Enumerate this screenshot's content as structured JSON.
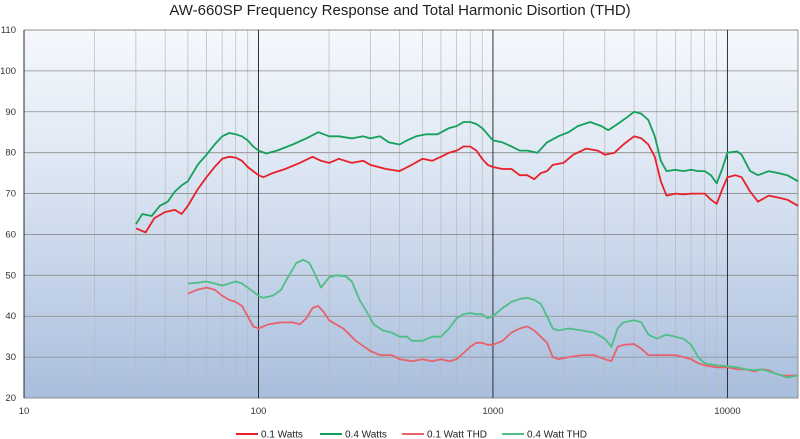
{
  "chart_data": {
    "type": "line",
    "title": "AW-660SP Frequency Response and Total Harmonic Disortion (THD)",
    "xlabel": "",
    "ylabel": "",
    "xscale": "log",
    "xlim": [
      10,
      20000
    ],
    "ylim": [
      20,
      110
    ],
    "x_ticks": [
      10,
      100,
      1000,
      10000
    ],
    "x_tick_labels": [
      "10",
      "100",
      "1000",
      "10000"
    ],
    "y_ticks": [
      20,
      30,
      40,
      50,
      60,
      70,
      80,
      90,
      100,
      110
    ],
    "y_tick_labels": [
      "20",
      "30",
      "40",
      "50",
      "60",
      "70",
      "80",
      "90",
      "100",
      "110"
    ],
    "grid": true,
    "legend_position": "bottom",
    "series": [
      {
        "name": "0.1 Watts",
        "color": "#e8202a",
        "points": [
          [
            30,
            61.5
          ],
          [
            33,
            60.5
          ],
          [
            36,
            64
          ],
          [
            40,
            65.5
          ],
          [
            44,
            66
          ],
          [
            47,
            65
          ],
          [
            50,
            67
          ],
          [
            55,
            71
          ],
          [
            60,
            74
          ],
          [
            65,
            76.5
          ],
          [
            70,
            78.5
          ],
          [
            75,
            79
          ],
          [
            80,
            78.8
          ],
          [
            85,
            78
          ],
          [
            90,
            76.5
          ],
          [
            95,
            75.5
          ],
          [
            100,
            74.5
          ],
          [
            105,
            74
          ],
          [
            115,
            75
          ],
          [
            130,
            76
          ],
          [
            150,
            77.5
          ],
          [
            170,
            79
          ],
          [
            185,
            78
          ],
          [
            200,
            77.5
          ],
          [
            220,
            78.5
          ],
          [
            250,
            77.5
          ],
          [
            280,
            78
          ],
          [
            300,
            77
          ],
          [
            350,
            76
          ],
          [
            400,
            75.5
          ],
          [
            450,
            77
          ],
          [
            500,
            78.5
          ],
          [
            550,
            78
          ],
          [
            600,
            79
          ],
          [
            650,
            80
          ],
          [
            700,
            80.5
          ],
          [
            750,
            81.5
          ],
          [
            800,
            81.5
          ],
          [
            850,
            80.5
          ],
          [
            900,
            78.5
          ],
          [
            950,
            77
          ],
          [
            1000,
            76.5
          ],
          [
            1100,
            76
          ],
          [
            1200,
            76
          ],
          [
            1300,
            74.5
          ],
          [
            1400,
            74.5
          ],
          [
            1500,
            73.5
          ],
          [
            1600,
            75
          ],
          [
            1700,
            75.5
          ],
          [
            1800,
            77
          ],
          [
            2000,
            77.5
          ],
          [
            2200,
            79.5
          ],
          [
            2500,
            81
          ],
          [
            2800,
            80.5
          ],
          [
            3000,
            79.5
          ],
          [
            3300,
            80
          ],
          [
            3600,
            82
          ],
          [
            4000,
            84
          ],
          [
            4300,
            83.5
          ],
          [
            4600,
            82
          ],
          [
            4900,
            79
          ],
          [
            5200,
            73
          ],
          [
            5500,
            69.5
          ],
          [
            6000,
            70
          ],
          [
            6500,
            69.8
          ],
          [
            7000,
            70
          ],
          [
            7500,
            70
          ],
          [
            8000,
            70
          ],
          [
            8500,
            68.5
          ],
          [
            9000,
            67.5
          ],
          [
            9500,
            71
          ],
          [
            10000,
            74
          ],
          [
            10800,
            74.5
          ],
          [
            11500,
            74
          ],
          [
            12500,
            70.5
          ],
          [
            13500,
            68
          ],
          [
            15000,
            69.5
          ],
          [
            16500,
            69
          ],
          [
            18000,
            68.5
          ],
          [
            20000,
            67
          ]
        ]
      },
      {
        "name": "0.4 Watts",
        "color": "#15a05a",
        "points": [
          [
            30,
            62.5
          ],
          [
            32,
            65
          ],
          [
            35,
            64.5
          ],
          [
            38,
            67
          ],
          [
            41,
            68
          ],
          [
            44,
            70.5
          ],
          [
            47,
            72
          ],
          [
            50,
            73
          ],
          [
            55,
            77
          ],
          [
            60,
            79.5
          ],
          [
            65,
            82
          ],
          [
            70,
            84
          ],
          [
            75,
            84.8
          ],
          [
            80,
            84.5
          ],
          [
            85,
            84
          ],
          [
            90,
            83
          ],
          [
            95,
            81.5
          ],
          [
            100,
            80.5
          ],
          [
            108,
            79.8
          ],
          [
            120,
            80.5
          ],
          [
            140,
            82
          ],
          [
            160,
            83.5
          ],
          [
            180,
            85
          ],
          [
            200,
            84
          ],
          [
            220,
            84
          ],
          [
            250,
            83.5
          ],
          [
            280,
            84
          ],
          [
            300,
            83.5
          ],
          [
            330,
            84
          ],
          [
            360,
            82.5
          ],
          [
            400,
            82
          ],
          [
            430,
            83
          ],
          [
            470,
            84
          ],
          [
            520,
            84.5
          ],
          [
            580,
            84.5
          ],
          [
            650,
            86
          ],
          [
            700,
            86.5
          ],
          [
            750,
            87.5
          ],
          [
            800,
            87.5
          ],
          [
            850,
            87
          ],
          [
            900,
            86
          ],
          [
            950,
            84.5
          ],
          [
            1000,
            83
          ],
          [
            1100,
            82.5
          ],
          [
            1200,
            81.5
          ],
          [
            1300,
            80.5
          ],
          [
            1400,
            80.5
          ],
          [
            1550,
            80
          ],
          [
            1700,
            82.5
          ],
          [
            1900,
            84
          ],
          [
            2100,
            85
          ],
          [
            2300,
            86.5
          ],
          [
            2600,
            87.5
          ],
          [
            2900,
            86.5
          ],
          [
            3100,
            85.5
          ],
          [
            3400,
            87
          ],
          [
            3700,
            88.5
          ],
          [
            4000,
            90
          ],
          [
            4300,
            89.5
          ],
          [
            4600,
            88
          ],
          [
            4900,
            84
          ],
          [
            5200,
            78
          ],
          [
            5500,
            75.5
          ],
          [
            6000,
            75.8
          ],
          [
            6500,
            75.5
          ],
          [
            7000,
            75.8
          ],
          [
            7500,
            75.5
          ],
          [
            8000,
            75.5
          ],
          [
            8500,
            74.5
          ],
          [
            9000,
            72.5
          ],
          [
            9500,
            76
          ],
          [
            10000,
            80
          ],
          [
            11000,
            80.3
          ],
          [
            11500,
            79.5
          ],
          [
            12500,
            75.5
          ],
          [
            13500,
            74.5
          ],
          [
            15000,
            75.5
          ],
          [
            16500,
            75
          ],
          [
            18000,
            74.5
          ],
          [
            20000,
            73
          ]
        ]
      },
      {
        "name": "0.1 Watt THD",
        "color": "#e8626e",
        "points": [
          [
            50,
            45.5
          ],
          [
            55,
            46.5
          ],
          [
            60,
            47
          ],
          [
            65,
            46.5
          ],
          [
            70,
            45
          ],
          [
            75,
            44
          ],
          [
            80,
            43.5
          ],
          [
            85,
            42.5
          ],
          [
            90,
            40
          ],
          [
            95,
            37.5
          ],
          [
            100,
            37
          ],
          [
            110,
            38
          ],
          [
            125,
            38.5
          ],
          [
            140,
            38.5
          ],
          [
            150,
            38
          ],
          [
            160,
            39.5
          ],
          [
            170,
            42
          ],
          [
            180,
            42.5
          ],
          [
            190,
            41
          ],
          [
            200,
            39
          ],
          [
            230,
            37
          ],
          [
            260,
            34
          ],
          [
            300,
            31.5
          ],
          [
            330,
            30.5
          ],
          [
            370,
            30.5
          ],
          [
            400,
            29.5
          ],
          [
            450,
            29
          ],
          [
            500,
            29.5
          ],
          [
            550,
            29
          ],
          [
            600,
            29.5
          ],
          [
            650,
            29
          ],
          [
            700,
            29.5
          ],
          [
            750,
            31
          ],
          [
            800,
            32.5
          ],
          [
            850,
            33.5
          ],
          [
            900,
            33.5
          ],
          [
            950,
            33
          ],
          [
            1000,
            33
          ],
          [
            1100,
            34
          ],
          [
            1200,
            36
          ],
          [
            1300,
            37
          ],
          [
            1400,
            37.5
          ],
          [
            1500,
            36.5
          ],
          [
            1600,
            35
          ],
          [
            1700,
            33.5
          ],
          [
            1800,
            30
          ],
          [
            1900,
            29.5
          ],
          [
            2100,
            30
          ],
          [
            2400,
            30.5
          ],
          [
            2700,
            30.5
          ],
          [
            3000,
            29.5
          ],
          [
            3200,
            29
          ],
          [
            3400,
            32.5
          ],
          [
            3600,
            33
          ],
          [
            4000,
            33.2
          ],
          [
            4300,
            32
          ],
          [
            4600,
            30.5
          ],
          [
            5000,
            30.5
          ],
          [
            5500,
            30.5
          ],
          [
            6000,
            30.5
          ],
          [
            6500,
            30
          ],
          [
            7000,
            29.5
          ],
          [
            7500,
            28.5
          ],
          [
            8000,
            28
          ],
          [
            9000,
            27.5
          ],
          [
            10000,
            27.5
          ],
          [
            11000,
            27
          ],
          [
            12000,
            27
          ],
          [
            13000,
            26.5
          ],
          [
            14000,
            27
          ],
          [
            15000,
            26.8
          ],
          [
            16000,
            26
          ],
          [
            17000,
            25.5
          ],
          [
            18000,
            25.5
          ],
          [
            20000,
            25.5
          ]
        ]
      },
      {
        "name": "0.4 Watt THD",
        "color": "#4fbf86",
        "points": [
          [
            50,
            48
          ],
          [
            55,
            48.2
          ],
          [
            60,
            48.5
          ],
          [
            65,
            48
          ],
          [
            70,
            47.5
          ],
          [
            75,
            48
          ],
          [
            80,
            48.5
          ],
          [
            85,
            48
          ],
          [
            90,
            47
          ],
          [
            95,
            46
          ],
          [
            100,
            45
          ],
          [
            105,
            44.5
          ],
          [
            115,
            45
          ],
          [
            125,
            46.5
          ],
          [
            135,
            50
          ],
          [
            145,
            53
          ],
          [
            155,
            53.8
          ],
          [
            165,
            53
          ],
          [
            175,
            50
          ],
          [
            185,
            47
          ],
          [
            200,
            49.5
          ],
          [
            215,
            50
          ],
          [
            235,
            49.8
          ],
          [
            250,
            48.5
          ],
          [
            270,
            44
          ],
          [
            290,
            41
          ],
          [
            310,
            38
          ],
          [
            340,
            36.5
          ],
          [
            370,
            36
          ],
          [
            400,
            35
          ],
          [
            430,
            35
          ],
          [
            450,
            34
          ],
          [
            500,
            34
          ],
          [
            550,
            35
          ],
          [
            600,
            35
          ],
          [
            650,
            37
          ],
          [
            700,
            39.5
          ],
          [
            750,
            40.5
          ],
          [
            800,
            40.8
          ],
          [
            850,
            40.5
          ],
          [
            900,
            40.5
          ],
          [
            950,
            39.5
          ],
          [
            1000,
            40
          ],
          [
            1100,
            42
          ],
          [
            1200,
            43.5
          ],
          [
            1300,
            44.2
          ],
          [
            1400,
            44.5
          ],
          [
            1500,
            44
          ],
          [
            1600,
            43
          ],
          [
            1700,
            40
          ],
          [
            1800,
            37
          ],
          [
            1900,
            36.5
          ],
          [
            2100,
            37
          ],
          [
            2400,
            36.5
          ],
          [
            2700,
            36
          ],
          [
            3000,
            34.5
          ],
          [
            3200,
            32.5
          ],
          [
            3400,
            37
          ],
          [
            3600,
            38.5
          ],
          [
            4000,
            39
          ],
          [
            4300,
            38.5
          ],
          [
            4600,
            35.5
          ],
          [
            5000,
            34.5
          ],
          [
            5500,
            35.5
          ],
          [
            6000,
            35
          ],
          [
            6500,
            34.5
          ],
          [
            7000,
            33
          ],
          [
            7500,
            30
          ],
          [
            8000,
            28.5
          ],
          [
            9000,
            28
          ],
          [
            10000,
            27.8
          ],
          [
            11000,
            27.5
          ],
          [
            12000,
            27
          ],
          [
            13000,
            26.8
          ],
          [
            14000,
            27
          ],
          [
            15000,
            26.5
          ],
          [
            16000,
            26
          ],
          [
            17000,
            25.5
          ],
          [
            18000,
            25
          ],
          [
            20000,
            25.5
          ]
        ]
      }
    ]
  }
}
